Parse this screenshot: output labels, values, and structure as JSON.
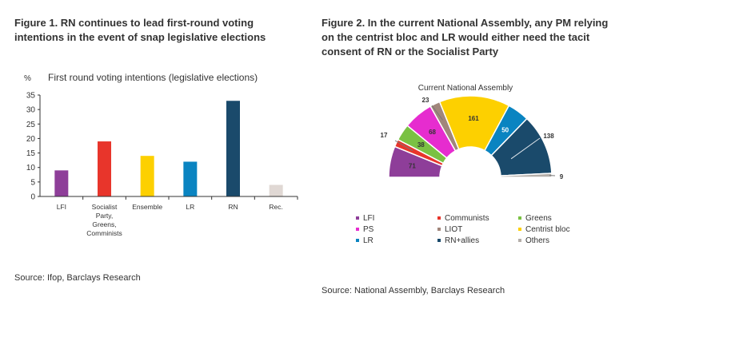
{
  "figure1": {
    "title": "Figure 1. RN continues to lead first-round voting intentions in the event of snap legislative elections",
    "source": "Source: Ifop, Barclays Research"
  },
  "figure2": {
    "title": "Figure 2. In the current National Assembly, any PM relying on the centrist bloc and LR would either need the tacit consent of RN or the Socialist Party",
    "source": "Source: National Assembly, Barclays Research"
  },
  "chart_data": [
    {
      "type": "bar",
      "title": "First round voting intentions (legislative elections)",
      "ylabel": "%",
      "ylim": [
        0,
        35
      ],
      "yticks": [
        0,
        5,
        10,
        15,
        20,
        25,
        30,
        35
      ],
      "grid": false,
      "categories": [
        "LFI",
        "Socialist Party, Greens, Comminists",
        "Ensemble",
        "LR",
        "RN",
        "Rec."
      ],
      "category_lines": [
        [
          "LFI"
        ],
        [
          "Socialist",
          "Party,",
          "Greens,",
          "Comminists"
        ],
        [
          "Ensemble"
        ],
        [
          "LR"
        ],
        [
          "RN"
        ],
        [
          "Rec."
        ]
      ],
      "values": [
        9,
        19,
        14,
        12,
        33,
        4
      ],
      "colors": [
        "#8e3e99",
        "#e8352b",
        "#fdd000",
        "#0a84c1",
        "#1a4a6b",
        "#e0d8d4"
      ]
    },
    {
      "type": "pie",
      "title": "Current National Assembly",
      "legend_position": "bottom",
      "slices": [
        {
          "name": "LFI",
          "value": 71,
          "color": "#8e3e99"
        },
        {
          "name": "Communists",
          "value": 17,
          "color": "#e8352b"
        },
        {
          "name": "Greens",
          "value": 38,
          "color": "#7ac143"
        },
        {
          "name": "PS",
          "value": 68,
          "color": "#e62ccf"
        },
        {
          "name": "LIOT",
          "value": 23,
          "color": "#a1867b"
        },
        {
          "name": "Centrist bloc",
          "value": 161,
          "color": "#fdd000"
        },
        {
          "name": "LR",
          "value": 50,
          "color": "#0a84c1"
        },
        {
          "name": "RN+allies",
          "value": 138,
          "color": "#1a4a6b"
        },
        {
          "name": "Others",
          "value": 9,
          "color": "#b4aea9"
        }
      ],
      "legend_order": [
        "LFI",
        "Communists",
        "Greens",
        "PS",
        "LIOT",
        "Centrist bloc",
        "LR",
        "RN+allies",
        "Others"
      ]
    }
  ]
}
